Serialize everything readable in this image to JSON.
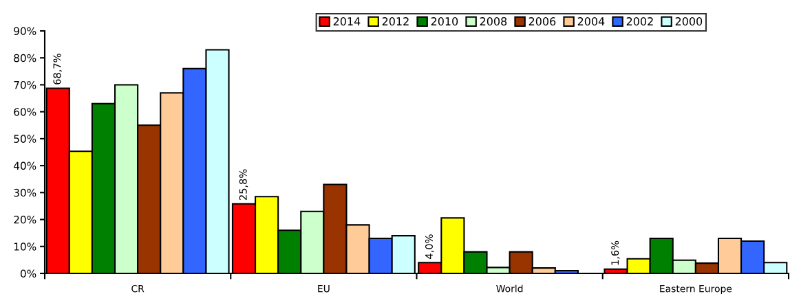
{
  "chart_data": {
    "type": "bar",
    "categories": [
      "CR",
      "EU",
      "World",
      "Eastern Europe"
    ],
    "series": [
      {
        "name": "2014",
        "color": "#ff0000",
        "values": [
          68.7,
          25.8,
          4.0,
          1.6
        ],
        "value_labels": [
          "68,7%",
          "25,8%",
          "4,0%",
          "1,6%"
        ]
      },
      {
        "name": "2012",
        "color": "#ffff00",
        "values": [
          45.3,
          28.5,
          20.6,
          5.4
        ]
      },
      {
        "name": "2010",
        "color": "#008000",
        "values": [
          63,
          16,
          8,
          13
        ]
      },
      {
        "name": "2008",
        "color": "#ccffcc",
        "values": [
          70,
          23,
          2.2,
          4.9
        ]
      },
      {
        "name": "2006",
        "color": "#993300",
        "values": [
          55,
          33,
          8,
          3.8
        ]
      },
      {
        "name": "2004",
        "color": "#ffcc99",
        "values": [
          67,
          18,
          2,
          13
        ]
      },
      {
        "name": "2002",
        "color": "#3366ff",
        "values": [
          76,
          13,
          1,
          12
        ]
      },
      {
        "name": "2000",
        "color": "#ccffff",
        "values": [
          83,
          14,
          null,
          4
        ]
      }
    ],
    "ylim": [
      0,
      90
    ],
    "yticks": [
      {
        "value": 0,
        "label": "0%"
      },
      {
        "value": 10,
        "label": "10%"
      },
      {
        "value": 20,
        "label": "20%"
      },
      {
        "value": 30,
        "label": "30%"
      },
      {
        "value": 40,
        "label": "40%"
      },
      {
        "value": 50,
        "label": "50%"
      },
      {
        "value": 60,
        "label": "60%"
      },
      {
        "value": 70,
        "label": "70%"
      },
      {
        "value": 80,
        "label": "80%"
      },
      {
        "value": 90,
        "label": "90%"
      }
    ],
    "legend": "top right",
    "grid": false
  }
}
